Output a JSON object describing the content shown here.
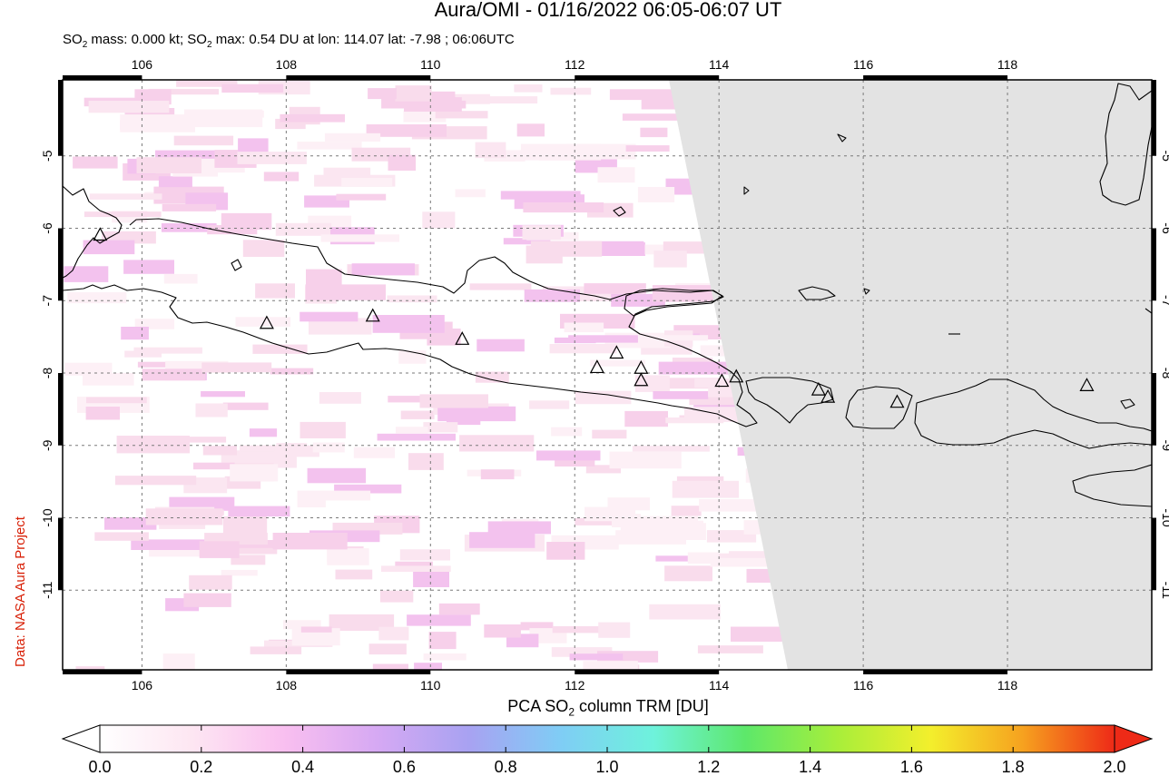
{
  "title": "Aura/OMI - 01/16/2022 06:05-06:07 UT",
  "subtitle": {
    "prefix": "SO",
    "sub1": "2",
    "mid": " mass: 0.000 kt; SO",
    "sub2": "2",
    "suffix": " max: 0.54 DU at lon: 114.07 lat: -7.98 ; 06:06UTC"
  },
  "credit": "Data: NASA Aura Project",
  "colorbar": {
    "label_prefix": "PCA SO",
    "label_sub": "2",
    "label_suffix": " column TRM [DU]",
    "ticks": [
      "0.0",
      "0.2",
      "0.4",
      "0.6",
      "0.8",
      "1.0",
      "1.2",
      "1.4",
      "1.6",
      "1.8",
      "2.0"
    ],
    "colors": [
      "#ffffff",
      "#fde6f2",
      "#f9bff0",
      "#d6a9f3",
      "#a8a2f2",
      "#7fcdf5",
      "#6ef2dc",
      "#5de86a",
      "#a8ee3a",
      "#f3ef2c",
      "#f6a21f",
      "#ee2a17"
    ]
  },
  "map": {
    "lon_range": [
      104.9,
      120.0
    ],
    "lat_range": [
      -12.1,
      -3.95
    ],
    "lon_ticks": [
      106,
      108,
      110,
      112,
      114,
      116,
      118
    ],
    "lat_ticks": [
      -5,
      -6,
      -7,
      -8,
      -9,
      -10,
      -11
    ],
    "lon_tick_labels": [
      "106",
      "108",
      "110",
      "112",
      "114",
      "116",
      "118"
    ],
    "lat_tick_labels": [
      "-5",
      "-6",
      "-7",
      "-8",
      "-9",
      "-10",
      "-11"
    ],
    "no_data_color": "#e3e3e3",
    "volcanoes": [
      {
        "lon": 105.42,
        "lat": -6.1
      },
      {
        "lon": 107.73,
        "lat": -7.32
      },
      {
        "lon": 109.2,
        "lat": -7.22
      },
      {
        "lon": 110.44,
        "lat": -7.54
      },
      {
        "lon": 112.31,
        "lat": -7.93
      },
      {
        "lon": 112.58,
        "lat": -7.73
      },
      {
        "lon": 112.92,
        "lat": -7.94
      },
      {
        "lon": 112.92,
        "lat": -8.11
      },
      {
        "lon": 114.04,
        "lat": -8.12
      },
      {
        "lon": 114.24,
        "lat": -8.06
      },
      {
        "lon": 115.38,
        "lat": -8.24
      },
      {
        "lon": 115.51,
        "lat": -8.34
      },
      {
        "lon": 116.47,
        "lat": -8.41
      },
      {
        "lon": 119.1,
        "lat": -8.18
      }
    ]
  }
}
